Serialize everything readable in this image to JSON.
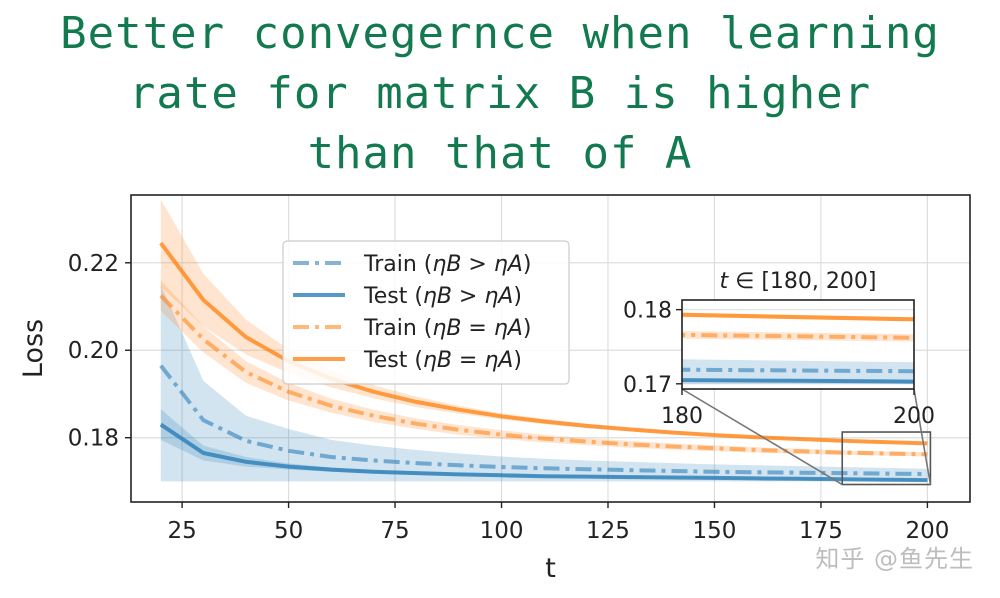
{
  "annotation": {
    "lines": [
      "Better convegernce when learning",
      "rate for matrix B is higher",
      "than that of A"
    ],
    "color": "#127a4e"
  },
  "watermark": "知乎 @鱼先生",
  "chart_data": {
    "type": "line",
    "title": "",
    "xlabel": "t",
    "ylabel": "Loss",
    "xlim": [
      13,
      210
    ],
    "ylim": [
      0.1653,
      0.2355
    ],
    "xticks": [
      25,
      50,
      75,
      100,
      125,
      150,
      175,
      200
    ],
    "yticks": [
      0.18,
      0.2,
      0.22
    ],
    "ytick_labels": [
      "0.18",
      "0.20",
      "0.22"
    ],
    "grid": true,
    "legend_position": "upper-left",
    "x": [
      20,
      30,
      40,
      50,
      60,
      70,
      80,
      90,
      100,
      110,
      120,
      130,
      140,
      150,
      160,
      170,
      180,
      190,
      200
    ],
    "series": [
      {
        "name": "Train (ηB > ηA)",
        "legend_main": "Train (",
        "legend_math": "ηB > ηA",
        "legend_end": ")",
        "color": "#1f77b4",
        "linestyle": "dashdot",
        "opacity": 0.55,
        "values": [
          0.1965,
          0.184,
          0.1793,
          0.177,
          0.1756,
          0.1748,
          0.1742,
          0.1737,
          0.1733,
          0.173,
          0.1728,
          0.1726,
          0.1724,
          0.1722,
          0.1721,
          0.172,
          0.1719,
          0.1718,
          0.1717
        ],
        "band_lower": [
          0.17,
          0.17,
          0.17,
          0.17,
          0.17,
          0.17,
          0.17,
          0.17,
          0.17,
          0.17,
          0.17,
          0.17,
          0.17,
          0.17,
          0.17,
          0.17,
          0.17,
          0.17,
          0.17
        ],
        "band_upper": [
          0.215,
          0.193,
          0.185,
          0.182,
          0.1795,
          0.1782,
          0.1772,
          0.1764,
          0.1757,
          0.1752,
          0.1748,
          0.1745,
          0.1742,
          0.1739,
          0.1737,
          0.1735,
          0.1733,
          0.1731,
          0.1729
        ]
      },
      {
        "name": "Test (ηB > ηA)",
        "legend_main": "Test (",
        "legend_math": "ηB > ηA",
        "legend_end": ")",
        "color": "#1f77b4",
        "linestyle": "solid",
        "opacity": 0.75,
        "values": [
          0.183,
          0.1765,
          0.1745,
          0.1734,
          0.1727,
          0.1722,
          0.1719,
          0.1716,
          0.1714,
          0.1712,
          0.1711,
          0.171,
          0.1709,
          0.1708,
          0.1707,
          0.1706,
          0.1705,
          0.1704,
          0.1703
        ],
        "band_lower": [
          0.1795,
          0.1748,
          0.1734,
          0.1727,
          0.1722,
          0.1718,
          0.1715,
          0.1713,
          0.1711,
          0.171,
          0.1709,
          0.1708,
          0.1707,
          0.1706,
          0.1705,
          0.1704,
          0.1703,
          0.1702,
          0.1701
        ],
        "band_upper": [
          0.1865,
          0.1782,
          0.1756,
          0.1741,
          0.1732,
          0.1726,
          0.1723,
          0.1719,
          0.1717,
          0.1714,
          0.1713,
          0.1712,
          0.1711,
          0.171,
          0.1709,
          0.1708,
          0.1707,
          0.1706,
          0.1705
        ]
      },
      {
        "name": "Train (ηB = ηA)",
        "legend_main": "Train (",
        "legend_math": "ηB = ηA",
        "legend_end": ")",
        "color": "#ff7f0e",
        "linestyle": "dashdot",
        "opacity": 0.55,
        "values": [
          0.2125,
          0.2025,
          0.195,
          0.1905,
          0.1873,
          0.185,
          0.1832,
          0.1818,
          0.1807,
          0.1798,
          0.1791,
          0.1785,
          0.178,
          0.1776,
          0.1772,
          0.1769,
          0.1766,
          0.1764,
          0.1762
        ],
        "band_lower": [
          0.209,
          0.1995,
          0.1925,
          0.1885,
          0.1857,
          0.1836,
          0.182,
          0.1807,
          0.1797,
          0.1789,
          0.1783,
          0.1777,
          0.1773,
          0.1769,
          0.1766,
          0.1763,
          0.1761,
          0.1759,
          0.1757
        ],
        "band_upper": [
          0.216,
          0.2055,
          0.1975,
          0.1925,
          0.1889,
          0.1864,
          0.1844,
          0.1829,
          0.1817,
          0.1807,
          0.1799,
          0.1793,
          0.1787,
          0.1783,
          0.1778,
          0.1775,
          0.1771,
          0.1769,
          0.1767
        ]
      },
      {
        "name": "Test (ηB = ηA)",
        "legend_main": "Test (",
        "legend_math": "ηB = ηA",
        "legend_end": ")",
        "color": "#ff7f0e",
        "linestyle": "solid",
        "opacity": 0.75,
        "values": [
          0.2245,
          0.2115,
          0.203,
          0.1975,
          0.1935,
          0.1905,
          0.1882,
          0.1864,
          0.1849,
          0.1837,
          0.1827,
          0.1819,
          0.1812,
          0.1806,
          0.1801,
          0.1797,
          0.1793,
          0.179,
          0.1787
        ],
        "band_lower": [
          0.2145,
          0.2055,
          0.199,
          0.1948,
          0.1915,
          0.189,
          0.187,
          0.1855,
          0.1842,
          0.1831,
          0.1822,
          0.1815,
          0.1808,
          0.1803,
          0.1798,
          0.1794,
          0.179,
          0.1787,
          0.1784
        ],
        "band_upper": [
          0.2345,
          0.2175,
          0.207,
          0.2002,
          0.1955,
          0.192,
          0.1894,
          0.1873,
          0.1856,
          0.1843,
          0.1832,
          0.1823,
          0.1816,
          0.1809,
          0.1804,
          0.18,
          0.1796,
          0.1793,
          0.179
        ]
      }
    ],
    "inset": {
      "title_math": "t",
      "title_text": " ∈ [180, 200]",
      "xlim": [
        180,
        200
      ],
      "ylim": [
        0.1693,
        0.1813
      ],
      "xticks": [
        180,
        200
      ],
      "yticks": [
        0.17,
        0.18
      ],
      "ytick_labels": [
        "0.17",
        "0.18"
      ],
      "grid": true
    }
  }
}
